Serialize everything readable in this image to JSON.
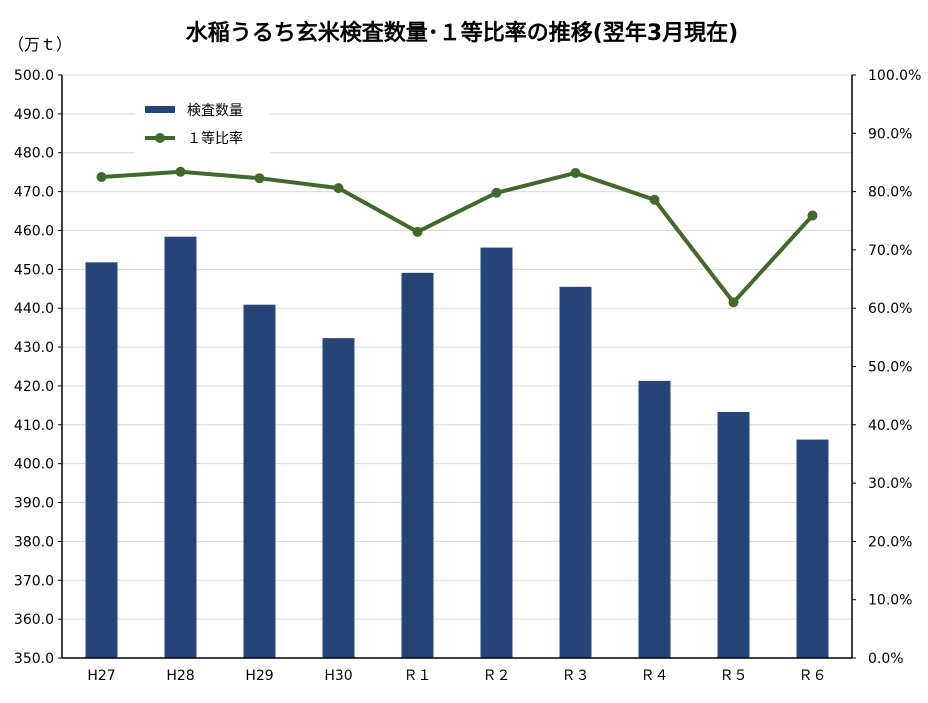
{
  "chart_data": {
    "type": "bar+line",
    "title": "水稲うるち玄米検査数量･１等比率の推移(翌年3月現在)",
    "ylabel_left": "（万ｔ）",
    "categories": [
      "H27",
      "H28",
      "H29",
      "H30",
      "Ｒ１",
      "Ｒ２",
      "Ｒ３",
      "Ｒ４",
      "Ｒ５",
      "Ｒ６"
    ],
    "series": [
      {
        "name": "検査数量",
        "type": "bar",
        "axis": "left",
        "color": "#264478",
        "values": [
          451.8,
          458.4,
          440.9,
          432.3,
          449.1,
          455.6,
          445.5,
          421.3,
          413.3,
          406.2
        ]
      },
      {
        "name": "１等比率",
        "type": "line",
        "axis": "right",
        "color": "#43682B",
        "values": [
          82.5,
          83.4,
          82.3,
          80.6,
          73.1,
          79.8,
          83.2,
          78.6,
          61.0,
          75.9
        ]
      }
    ],
    "ylim_left": [
      350,
      500
    ],
    "yticks_left": [
      "350.0",
      "360.0",
      "370.0",
      "380.0",
      "390.0",
      "400.0",
      "410.0",
      "420.0",
      "430.0",
      "440.0",
      "450.0",
      "460.0",
      "470.0",
      "480.0",
      "490.0",
      "500.0"
    ],
    "ylim_right": [
      0,
      100
    ],
    "yticks_right": [
      "0.0%",
      "10.0%",
      "20.0%",
      "30.0%",
      "40.0%",
      "50.0%",
      "60.0%",
      "70.0%",
      "80.0%",
      "90.0%",
      "100.0%"
    ],
    "grid": true,
    "legend_position": "top-left"
  }
}
